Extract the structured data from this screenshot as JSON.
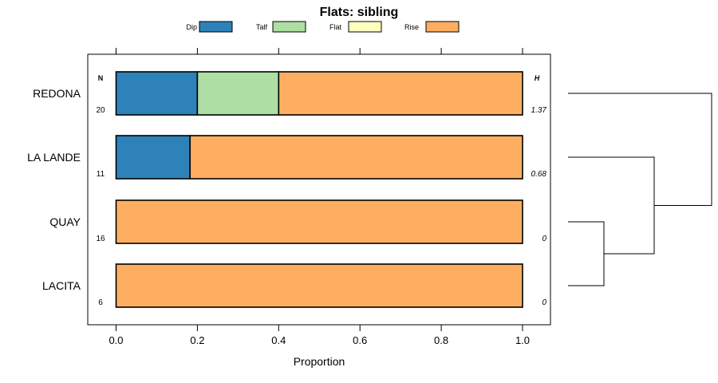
{
  "chart_data": {
    "type": "bar",
    "orientation": "horizontal",
    "stacked": true,
    "title": "Flats: sibling",
    "xlabel": "Proportion",
    "ylabel": "",
    "xlim": [
      -0.07,
      1.07
    ],
    "xticks": [
      0.0,
      0.2,
      0.4,
      0.6,
      0.8,
      1.0
    ],
    "xtick_labels": [
      "0.0",
      "0.2",
      "0.4",
      "0.6",
      "0.8",
      "1.0"
    ],
    "legend_position": "top",
    "legend": [
      {
        "name": "Dip",
        "color": "#2e82ba"
      },
      {
        "name": "Talf",
        "color": "#addea3"
      },
      {
        "name": "Flat",
        "color": "#ffffbf"
      },
      {
        "name": "Rise",
        "color": "#fdae61"
      }
    ],
    "n_header": "N",
    "h_header": "H",
    "categories": [
      "REDONA",
      "LA LANDE",
      "QUAY",
      "LACITA"
    ],
    "n_values": [
      "20",
      "11",
      "16",
      "6"
    ],
    "h_values": [
      "1.37",
      "0.68",
      "0",
      "0"
    ],
    "series": [
      {
        "name": "Dip",
        "values": [
          0.2,
          0.182,
          0,
          0
        ]
      },
      {
        "name": "Talf",
        "values": [
          0.2,
          0,
          0,
          0
        ]
      },
      {
        "name": "Flat",
        "values": [
          0,
          0,
          0,
          0
        ]
      },
      {
        "name": "Rise",
        "values": [
          0.6,
          0.818,
          1.0,
          1.0
        ]
      }
    ],
    "dendrogram": {
      "leaves": [
        "REDONA",
        "LA LANDE",
        "QUAY",
        "LACITA"
      ],
      "merges": [
        {
          "left": "QUAY",
          "right": "LACITA",
          "height": 0.25
        },
        {
          "left": "LA LANDE",
          "right": "QUAY+LACITA",
          "height": 0.6
        },
        {
          "left": "REDONA",
          "right": "LA LANDE+QUAY+LACITA",
          "height": 1.0
        }
      ]
    }
  }
}
